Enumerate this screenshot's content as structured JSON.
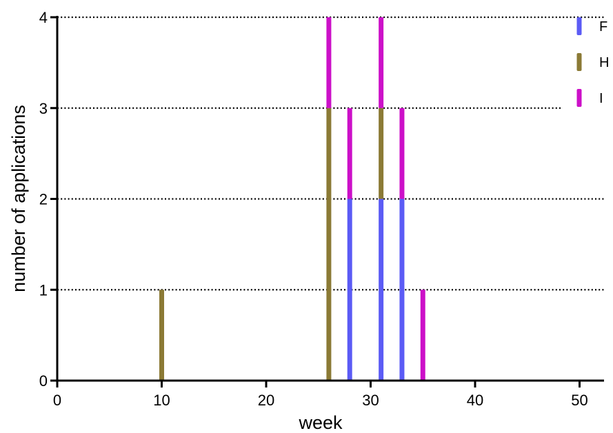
{
  "chart_data": {
    "type": "bar",
    "stacked": true,
    "title": "",
    "xlabel": "week",
    "ylabel": "number of applications",
    "xlim": [
      0,
      52
    ],
    "ylim": [
      0,
      4
    ],
    "xticks": [
      0,
      10,
      20,
      30,
      40,
      50
    ],
    "yticks": [
      0,
      1,
      2,
      3,
      4
    ],
    "grid": "horizontal dotted",
    "legend_position": "top-right",
    "series": [
      {
        "name": "F",
        "color": "#5b5bf5",
        "points": [
          {
            "x": 28,
            "y": 2
          },
          {
            "x": 31,
            "y": 2
          },
          {
            "x": 33,
            "y": 2
          }
        ]
      },
      {
        "name": "H",
        "color": "#8b7a35",
        "points": [
          {
            "x": 10,
            "y": 1
          },
          {
            "x": 26,
            "y": 3
          },
          {
            "x": 31,
            "y": 1
          }
        ]
      },
      {
        "name": "I",
        "color": "#cc10c8",
        "points": [
          {
            "x": 26,
            "y": 1
          },
          {
            "x": 28,
            "y": 1
          },
          {
            "x": 31,
            "y": 1
          },
          {
            "x": 33,
            "y": 1
          },
          {
            "x": 35,
            "y": 1
          }
        ]
      }
    ]
  }
}
